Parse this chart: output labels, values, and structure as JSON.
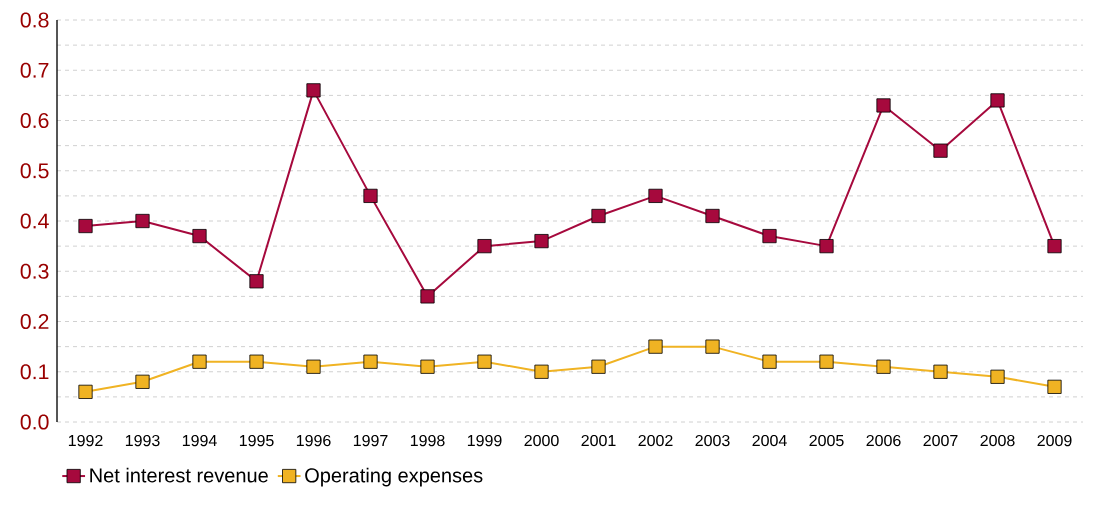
{
  "chart_data": {
    "type": "line",
    "categories": [
      "1992",
      "1993",
      "1994",
      "1995",
      "1996",
      "1997",
      "1998",
      "1999",
      "2000",
      "2001",
      "2002",
      "2003",
      "2004",
      "2005",
      "2006",
      "2007",
      "2008",
      "2009"
    ],
    "series": [
      {
        "name": "Net interest revenue",
        "color": "#a6093d",
        "values": [
          0.39,
          0.4,
          0.37,
          0.28,
          0.66,
          0.45,
          0.25,
          0.35,
          0.36,
          0.41,
          0.45,
          0.41,
          0.37,
          0.35,
          0.63,
          0.54,
          0.64,
          0.35
        ]
      },
      {
        "name": "Operating expenses",
        "color": "#f0b323",
        "values": [
          0.06,
          0.08,
          0.12,
          0.12,
          0.11,
          0.12,
          0.11,
          0.12,
          0.1,
          0.11,
          0.15,
          0.15,
          0.12,
          0.12,
          0.11,
          0.1,
          0.09,
          0.07
        ]
      }
    ],
    "ylim": [
      0,
      0.8
    ],
    "yticks": [
      {
        "value": 0,
        "label": "0.0"
      },
      {
        "value": 0.05,
        "label": null
      },
      0.1,
      {
        "value": 0.15,
        "label": null
      },
      0.2,
      {
        "value": 0.25,
        "label": null
      },
      0.3,
      {
        "value": 0.35,
        "label": null
      },
      0.4,
      {
        "value": 0.45,
        "label": null
      },
      0.5,
      {
        "value": 0.55,
        "label": null
      },
      0.6,
      {
        "value": 0.65,
        "label": null
      },
      0.7,
      {
        "value": 0.75,
        "label": null
      },
      0.8
    ],
    "grid": "y",
    "legend": "bottom",
    "marker": "square",
    "line_style": "solid"
  }
}
